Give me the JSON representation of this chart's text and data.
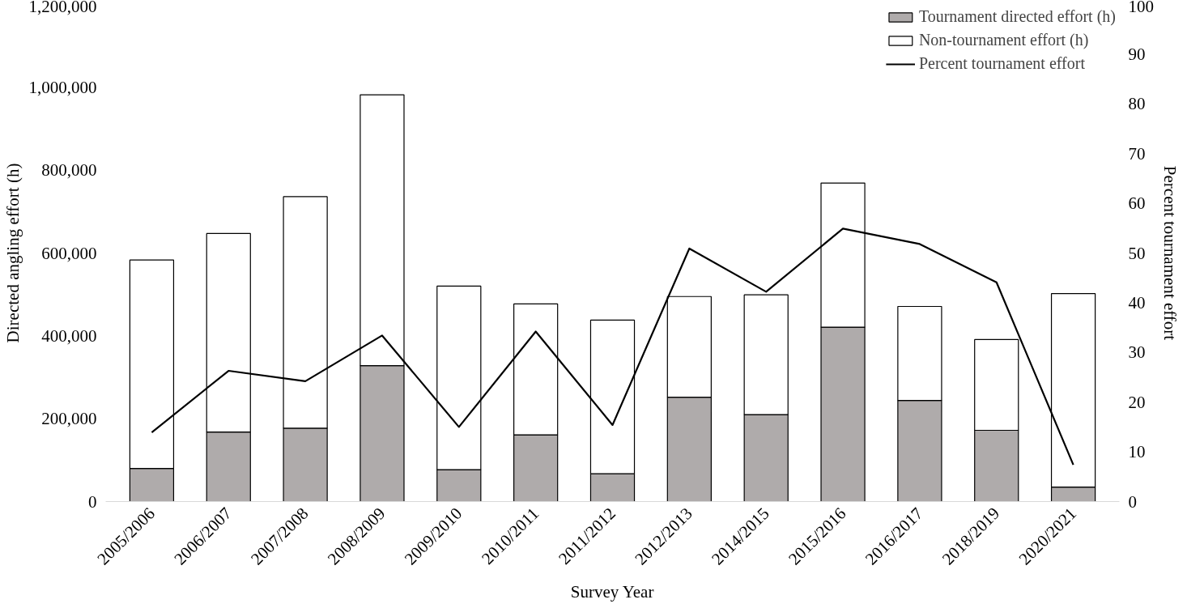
{
  "chart_data": {
    "type": "bar",
    "stacked": true,
    "categories": [
      "2005/2006",
      "2006/2007",
      "2007/2008",
      "2008/2009",
      "2009/2010",
      "2010/2011",
      "2011/2012",
      "2012/2013",
      "2014/2015",
      "2015/2016",
      "2016/2017",
      "2018/2019",
      "2020/2021"
    ],
    "series": [
      {
        "name": "Tournament directed effort (h)",
        "color": "#afabab",
        "values": [
          80000,
          168000,
          177000,
          328000,
          77000,
          161000,
          67000,
          252000,
          210000,
          421000,
          244000,
          172000,
          35000
        ]
      },
      {
        "name": "Non-tournament effort (h)",
        "color": "#ffffff",
        "values": [
          503000,
          479000,
          559000,
          654000,
          443000,
          316000,
          371000,
          243000,
          289000,
          348000,
          227000,
          219000,
          467000
        ]
      },
      {
        "name": "Percent tournament effort",
        "type": "line",
        "axis": "y2",
        "color": "#000000",
        "values": [
          13.9,
          26.3,
          24.2,
          33.4,
          15.0,
          34.2,
          15.4,
          50.9,
          42.2,
          54.9,
          51.8,
          44.1,
          7.4
        ]
      }
    ],
    "xlabel": "Survey Year",
    "ylabel": "Directed angling effort (h)",
    "y2label": "Percent tournament effort",
    "ylim": [
      0,
      1200000
    ],
    "yticks": [
      {
        "value": 0,
        "label": "0"
      },
      {
        "value": 200000,
        "label": "200,000"
      },
      {
        "value": 400000,
        "label": "400,000"
      },
      {
        "value": 600000,
        "label": "600,000"
      },
      {
        "value": 800000,
        "label": "800,000"
      },
      {
        "value": 1000000,
        "label": "1,000,000"
      },
      {
        "value": 1200000,
        "label": "1,200,000"
      }
    ],
    "y2lim": [
      0,
      100
    ],
    "y2ticks": [
      0,
      10,
      20,
      30,
      40,
      50,
      60,
      70,
      80,
      90,
      100
    ],
    "legend": "top right",
    "grid": false,
    "marker": "none",
    "line_style": "solid"
  }
}
